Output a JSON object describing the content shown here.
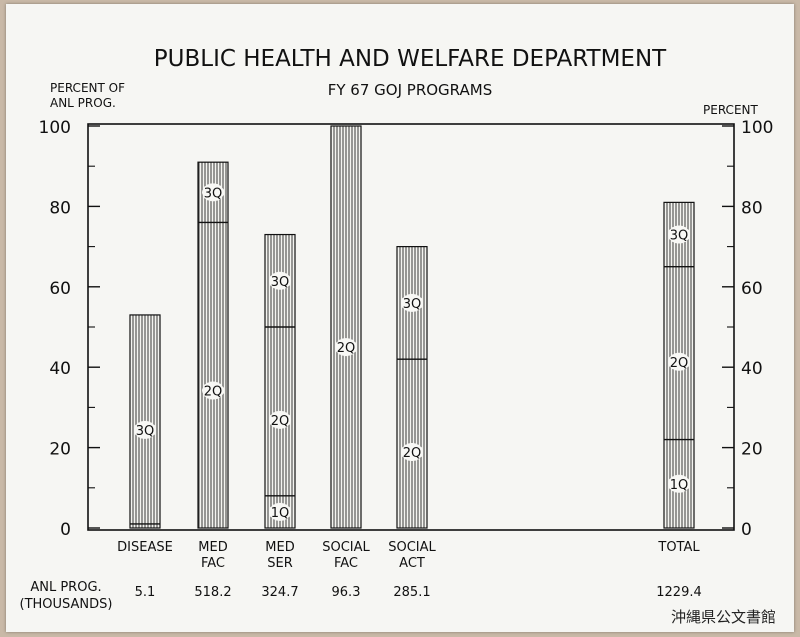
{
  "archive_label": "沖縄県公文書館",
  "chart_data": {
    "type": "bar",
    "title": "PUBLIC HEALTH AND WELFARE DEPARTMENT",
    "subtitle": "FY 67 GOJ PROGRAMS",
    "ylabel_left": [
      "PERCENT OF",
      "ANL PROG."
    ],
    "ylabel_right": "PERCENT",
    "ylim": [
      0,
      100
    ],
    "yticks": [
      "0",
      "20",
      "40",
      "60",
      "80",
      "100"
    ],
    "grid": false,
    "footer_label": [
      "ANL PROG.",
      "(THOUSANDS)"
    ],
    "bars": [
      {
        "category": [
          "DISEASE"
        ],
        "total": 53,
        "amount": "5.1",
        "segments": [
          {
            "label": "",
            "end": 1
          },
          {
            "label": "3Q",
            "end": 53
          }
        ]
      },
      {
        "category": [
          "MED",
          "FAC"
        ],
        "total": 91,
        "amount": "518.2",
        "segments": [
          {
            "label": "2Q",
            "end": 76
          },
          {
            "label": "3Q",
            "end": 91
          }
        ]
      },
      {
        "category": [
          "MED",
          "SER"
        ],
        "total": 73,
        "amount": "324.7",
        "segments": [
          {
            "label": "1Q",
            "end": 8
          },
          {
            "label": "2Q",
            "end": 50
          },
          {
            "label": "3Q",
            "end": 73
          }
        ]
      },
      {
        "category": [
          "SOCIAL",
          "FAC"
        ],
        "total": 100,
        "amount": "96.3",
        "segments": [
          {
            "label": "2Q",
            "end": 100
          }
        ]
      },
      {
        "category": [
          "SOCIAL",
          "ACT"
        ],
        "total": 70,
        "amount": "285.1",
        "segments": [
          {
            "label": "2Q",
            "end": 42
          },
          {
            "label": "3Q",
            "end": 70
          }
        ]
      },
      {
        "category": [
          "TOTAL"
        ],
        "total": 81,
        "amount": "1229.4",
        "segments": [
          {
            "label": "1Q",
            "end": 22
          },
          {
            "label": "2Q",
            "end": 65
          },
          {
            "label": "3Q",
            "end": 81
          }
        ]
      }
    ]
  }
}
